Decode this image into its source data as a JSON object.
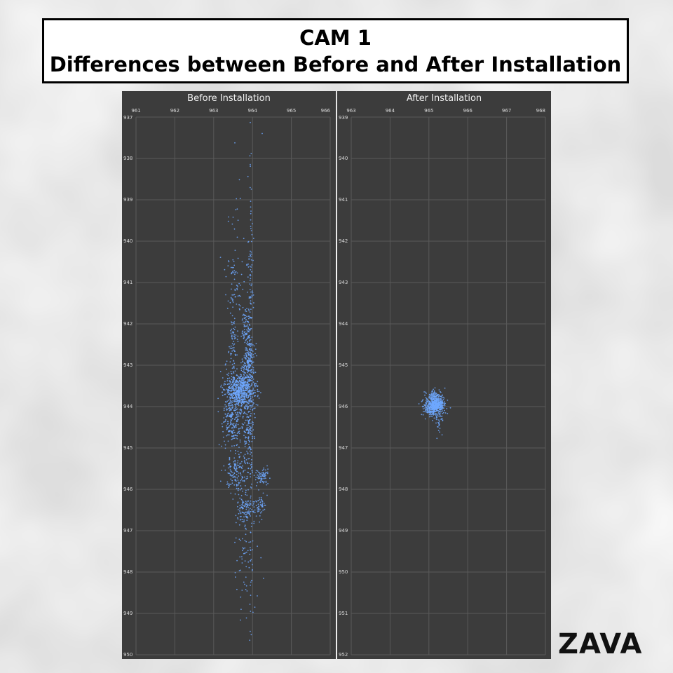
{
  "header": {
    "title_line1": "CAM 1",
    "title_line2": "Differences between Before and After Installation"
  },
  "logo": {
    "text": "ZAVA"
  },
  "colors": {
    "panel_bg": "#3c3c3c",
    "grid": "#5a5a5a",
    "point": "#6fa8ff",
    "tick_text": "#d8d8d8"
  },
  "chart_data": [
    {
      "type": "scatter",
      "title": "Before Installation",
      "xlabel": "",
      "ylabel": "",
      "xlim": [
        961,
        966
      ],
      "ylim": [
        937,
        950
      ],
      "y_inverted": true,
      "x_ticks": [
        961,
        962,
        963,
        964,
        965,
        966
      ],
      "y_ticks": [
        937,
        938,
        939,
        940,
        941,
        942,
        943,
        944,
        945,
        946,
        947,
        948,
        949,
        950
      ],
      "grid": true,
      "series": [
        {
          "clusters": [
            {
              "cx": 963.7,
              "cy": 943.6,
              "sx": 0.2,
              "sy": 0.22,
              "n": 700
            },
            {
              "cx": 963.5,
              "cy": 944.3,
              "sx": 0.12,
              "sy": 0.4,
              "n": 230
            },
            {
              "cx": 963.9,
              "cy": 944.5,
              "sx": 0.08,
              "sy": 0.4,
              "n": 140
            },
            {
              "cx": 963.9,
              "cy": 942.9,
              "sx": 0.08,
              "sy": 0.28,
              "n": 170
            },
            {
              "cx": 963.85,
              "cy": 942.2,
              "sx": 0.07,
              "sy": 0.3,
              "n": 90
            },
            {
              "cx": 963.5,
              "cy": 942.4,
              "sx": 0.06,
              "sy": 0.3,
              "n": 60
            },
            {
              "cx": 963.55,
              "cy": 941.1,
              "sx": 0.12,
              "sy": 0.6,
              "n": 70
            },
            {
              "cx": 963.95,
              "cy": 940.7,
              "sx": 0.06,
              "sy": 0.7,
              "n": 50
            },
            {
              "cx": 963.6,
              "cy": 945.6,
              "sx": 0.16,
              "sy": 0.22,
              "n": 160
            },
            {
              "cx": 964.25,
              "cy": 945.7,
              "sx": 0.09,
              "sy": 0.1,
              "n": 70
            },
            {
              "cx": 963.8,
              "cy": 946.5,
              "sx": 0.12,
              "sy": 0.18,
              "n": 110
            },
            {
              "cx": 964.2,
              "cy": 946.4,
              "sx": 0.07,
              "sy": 0.12,
              "n": 50
            },
            {
              "cx": 963.8,
              "cy": 947.5,
              "sx": 0.15,
              "sy": 0.4,
              "n": 45
            },
            {
              "cx": 963.85,
              "cy": 948.6,
              "sx": 0.15,
              "sy": 0.4,
              "n": 18
            },
            {
              "cx": 963.6,
              "cy": 939.4,
              "sx": 0.12,
              "sy": 0.5,
              "n": 12
            },
            {
              "cx": 963.9,
              "cy": 938.0,
              "sx": 0.15,
              "sy": 0.4,
              "n": 4
            },
            {
              "cx": 963.95,
              "cy": 944.0,
              "sx": 0.015,
              "sy": 2.8,
              "n": 90
            }
          ]
        }
      ]
    },
    {
      "type": "scatter",
      "title": "After Installation",
      "xlabel": "",
      "ylabel": "",
      "xlim": [
        963,
        968
      ],
      "ylim": [
        939,
        952
      ],
      "y_inverted": true,
      "x_ticks": [
        963,
        964,
        965,
        966,
        967,
        968
      ],
      "y_ticks": [
        939,
        940,
        941,
        942,
        943,
        944,
        945,
        946,
        947,
        948,
        949,
        950,
        951,
        952
      ],
      "grid": true,
      "series": [
        {
          "clusters": [
            {
              "cx": 965.15,
              "cy": 945.95,
              "sx": 0.12,
              "sy": 0.14,
              "n": 650
            },
            {
              "cx": 965.25,
              "cy": 946.35,
              "sx": 0.06,
              "sy": 0.18,
              "n": 30
            }
          ]
        }
      ]
    }
  ]
}
